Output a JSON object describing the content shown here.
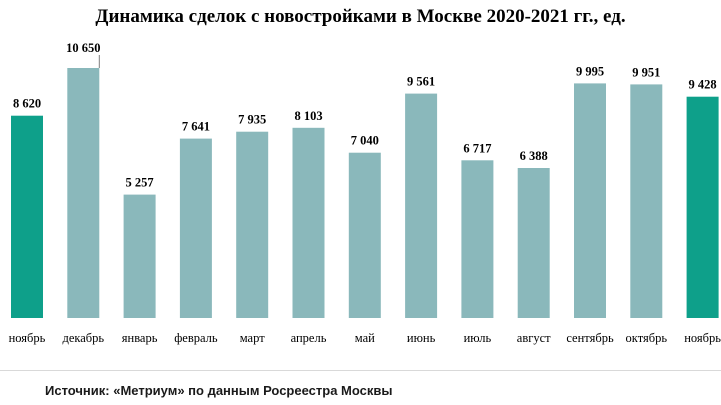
{
  "chart_data": {
    "type": "bar",
    "title": "Динамика сделок с новостройками в Москве 2020-2021 гг., ед.",
    "categories": [
      "ноябрь",
      "декабрь",
      "январь",
      "февраль",
      "март",
      "апрель",
      "май",
      "июнь",
      "июль",
      "август",
      "сентябрь",
      "октябрь",
      "ноябрь"
    ],
    "values": [
      8620,
      10650,
      5257,
      7641,
      7935,
      8103,
      7040,
      9561,
      6717,
      6388,
      9995,
      9951,
      9428
    ],
    "value_labels": [
      "8 620",
      "10 650",
      "5 257",
      "7 641",
      "7 935",
      "8 103",
      "7 040",
      "9 561",
      "6 717",
      "6 388",
      "9 995",
      "9 951",
      "9 428"
    ],
    "bar_colors": [
      "#0ea08a",
      "#8ab8bb",
      "#8ab8bb",
      "#8ab8bb",
      "#8ab8bb",
      "#8ab8bb",
      "#8ab8bb",
      "#8ab8bb",
      "#8ab8bb",
      "#8ab8bb",
      "#8ab8bb",
      "#8ab8bb",
      "#0ea08a"
    ],
    "highlight_color": "#0ea08a",
    "default_color": "#8ab8bb",
    "ylim": [
      0,
      10650
    ],
    "grid": false,
    "legend": "none",
    "xlabel": "",
    "ylabel": ""
  },
  "source": "Источник: «Метриум» по данным Росреестра Москвы"
}
